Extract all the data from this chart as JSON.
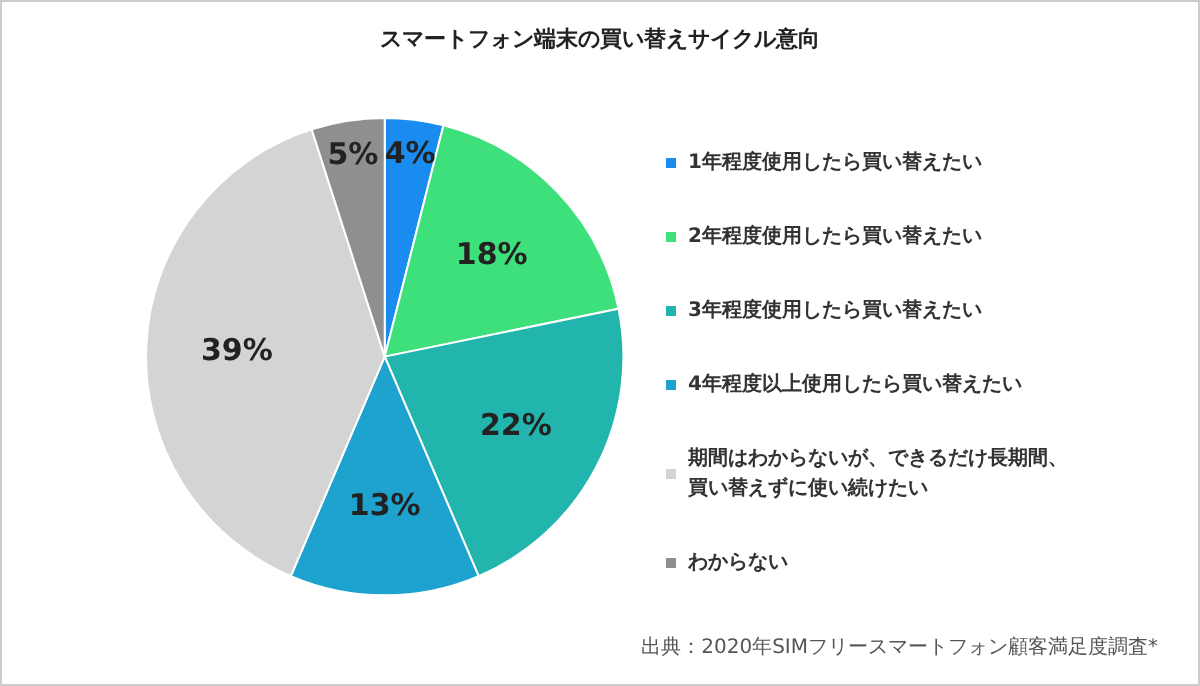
{
  "chart_data": {
    "type": "pie",
    "title": "スマートフォン端末の買い替えサイクル意向",
    "categories": [
      "1年程度使用したら買い替えたい",
      "2年程度使用したら買い替えたい",
      "3年程度使用したら買い替えたい",
      "4年程度以上使用したら買い替えたい",
      "期間はわからないが、できるだけ長期間、買い替えずに使い続けたい",
      "わからない"
    ],
    "values": [
      4,
      18,
      22,
      13,
      39,
      5
    ],
    "value_labels": [
      "4%",
      "18%",
      "22%",
      "13%",
      "39%",
      "5%"
    ],
    "colors": [
      "#1a8cf0",
      "#3ee07c",
      "#21b5ad",
      "#1ea3cf",
      "#d4d4d4",
      "#8f8f8f"
    ],
    "legend": "right",
    "annotations": [
      "出典：2020年SIMフリースマートフォン顧客満足度調査*"
    ]
  }
}
